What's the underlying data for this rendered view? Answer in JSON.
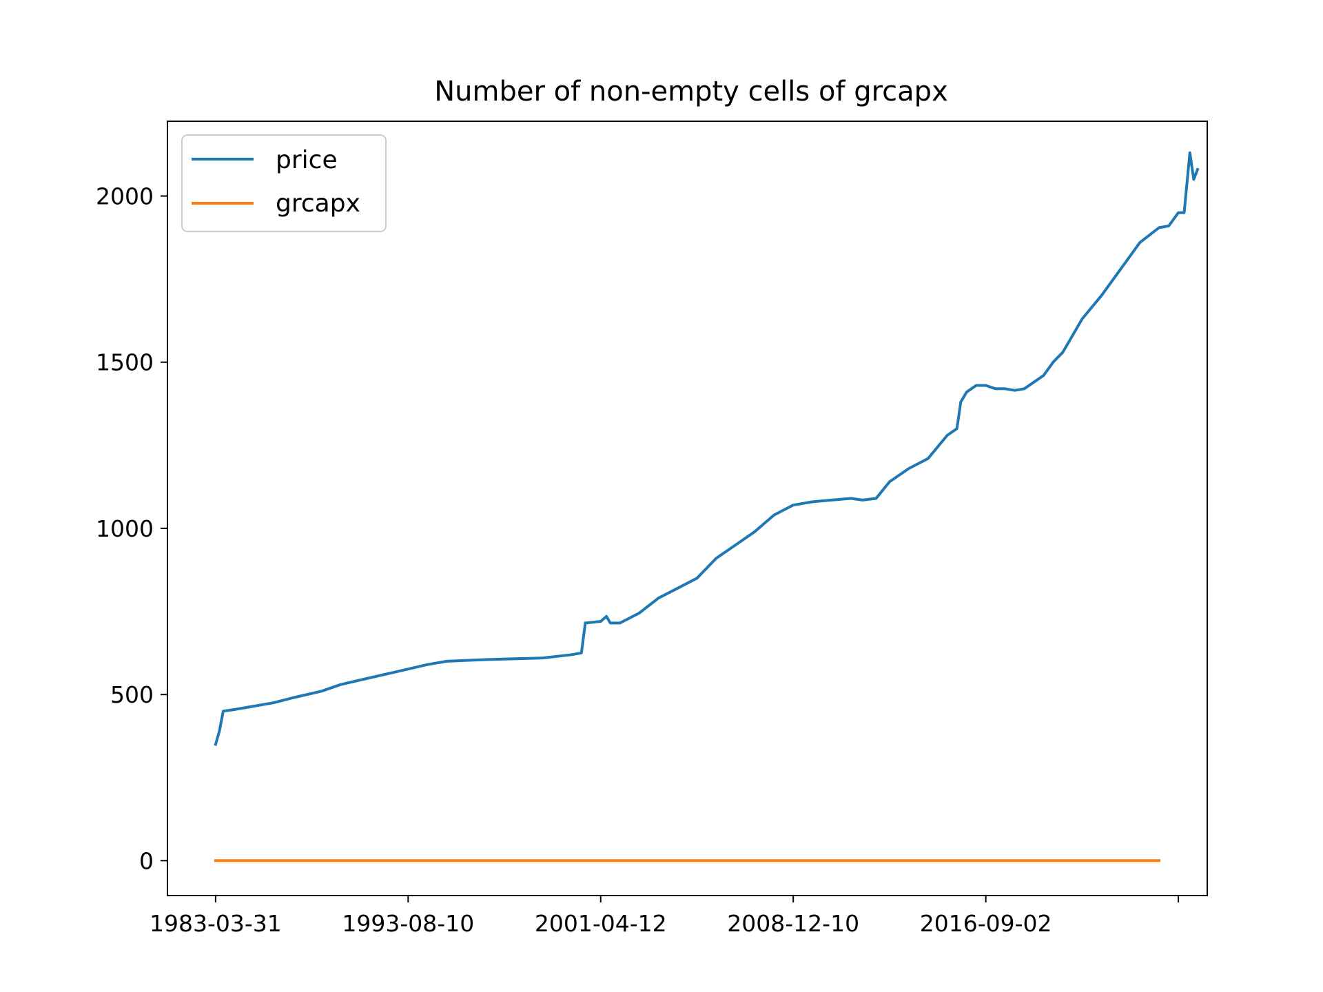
{
  "chart_data": {
    "type": "line",
    "title": "Number of non-empty cells of grcapx",
    "xlabel": "",
    "ylabel": "",
    "x_tick_labels": [
      "1983-03-31",
      "1993-08-10",
      "2001-04-12",
      "2008-12-10",
      "2016-09-02"
    ],
    "y_tick_labels": [
      "0",
      "500",
      "1000",
      "1500",
      "2000"
    ],
    "y_ticks": [
      0,
      500,
      1000,
      1500,
      2000
    ],
    "ylim": [
      -105,
      2225
    ],
    "xlim": [
      -0.25,
      5.15
    ],
    "grid": false,
    "legend_position": "upper left",
    "series": [
      {
        "name": "price",
        "color": "#1f77b4",
        "points": [
          [
            0,
            350
          ],
          [
            0.02,
            390
          ],
          [
            0.04,
            450
          ],
          [
            0.1,
            455
          ],
          [
            0.2,
            465
          ],
          [
            0.3,
            475
          ],
          [
            0.4,
            490
          ],
          [
            0.55,
            510
          ],
          [
            0.65,
            530
          ],
          [
            0.8,
            550
          ],
          [
            0.95,
            570
          ],
          [
            1.1,
            590
          ],
          [
            1.2,
            600
          ],
          [
            1.4,
            605
          ],
          [
            1.7,
            610
          ],
          [
            1.85,
            620
          ],
          [
            1.9,
            625
          ],
          [
            1.92,
            715
          ],
          [
            2.0,
            720
          ],
          [
            2.03,
            735
          ],
          [
            2.05,
            715
          ],
          [
            2.1,
            715
          ],
          [
            2.2,
            745
          ],
          [
            2.3,
            790
          ],
          [
            2.4,
            820
          ],
          [
            2.5,
            850
          ],
          [
            2.6,
            910
          ],
          [
            2.7,
            950
          ],
          [
            2.8,
            990
          ],
          [
            2.9,
            1040
          ],
          [
            3.0,
            1070
          ],
          [
            3.1,
            1080
          ],
          [
            3.2,
            1085
          ],
          [
            3.3,
            1090
          ],
          [
            3.36,
            1085
          ],
          [
            3.43,
            1090
          ],
          [
            3.5,
            1140
          ],
          [
            3.6,
            1180
          ],
          [
            3.7,
            1210
          ],
          [
            3.8,
            1280
          ],
          [
            3.85,
            1300
          ],
          [
            3.87,
            1380
          ],
          [
            3.9,
            1410
          ],
          [
            3.95,
            1430
          ],
          [
            4.0,
            1430
          ],
          [
            4.05,
            1420
          ],
          [
            4.1,
            1420
          ],
          [
            4.15,
            1415
          ],
          [
            4.2,
            1420
          ],
          [
            4.25,
            1440
          ],
          [
            4.3,
            1460
          ],
          [
            4.35,
            1500
          ],
          [
            4.4,
            1530
          ],
          [
            4.45,
            1580
          ],
          [
            4.5,
            1630
          ],
          [
            4.6,
            1700
          ],
          [
            4.7,
            1780
          ],
          [
            4.8,
            1860
          ],
          [
            4.9,
            1905
          ],
          [
            4.95,
            1910
          ],
          [
            5.0,
            1950
          ],
          [
            5.03,
            1950
          ],
          [
            5.06,
            2130
          ],
          [
            5.08,
            2050
          ],
          [
            5.1,
            2080
          ]
        ]
      },
      {
        "name": "grcapx",
        "color": "#ff7f0e",
        "points": [
          [
            0,
            0
          ],
          [
            4.9,
            0
          ]
        ]
      }
    ]
  }
}
